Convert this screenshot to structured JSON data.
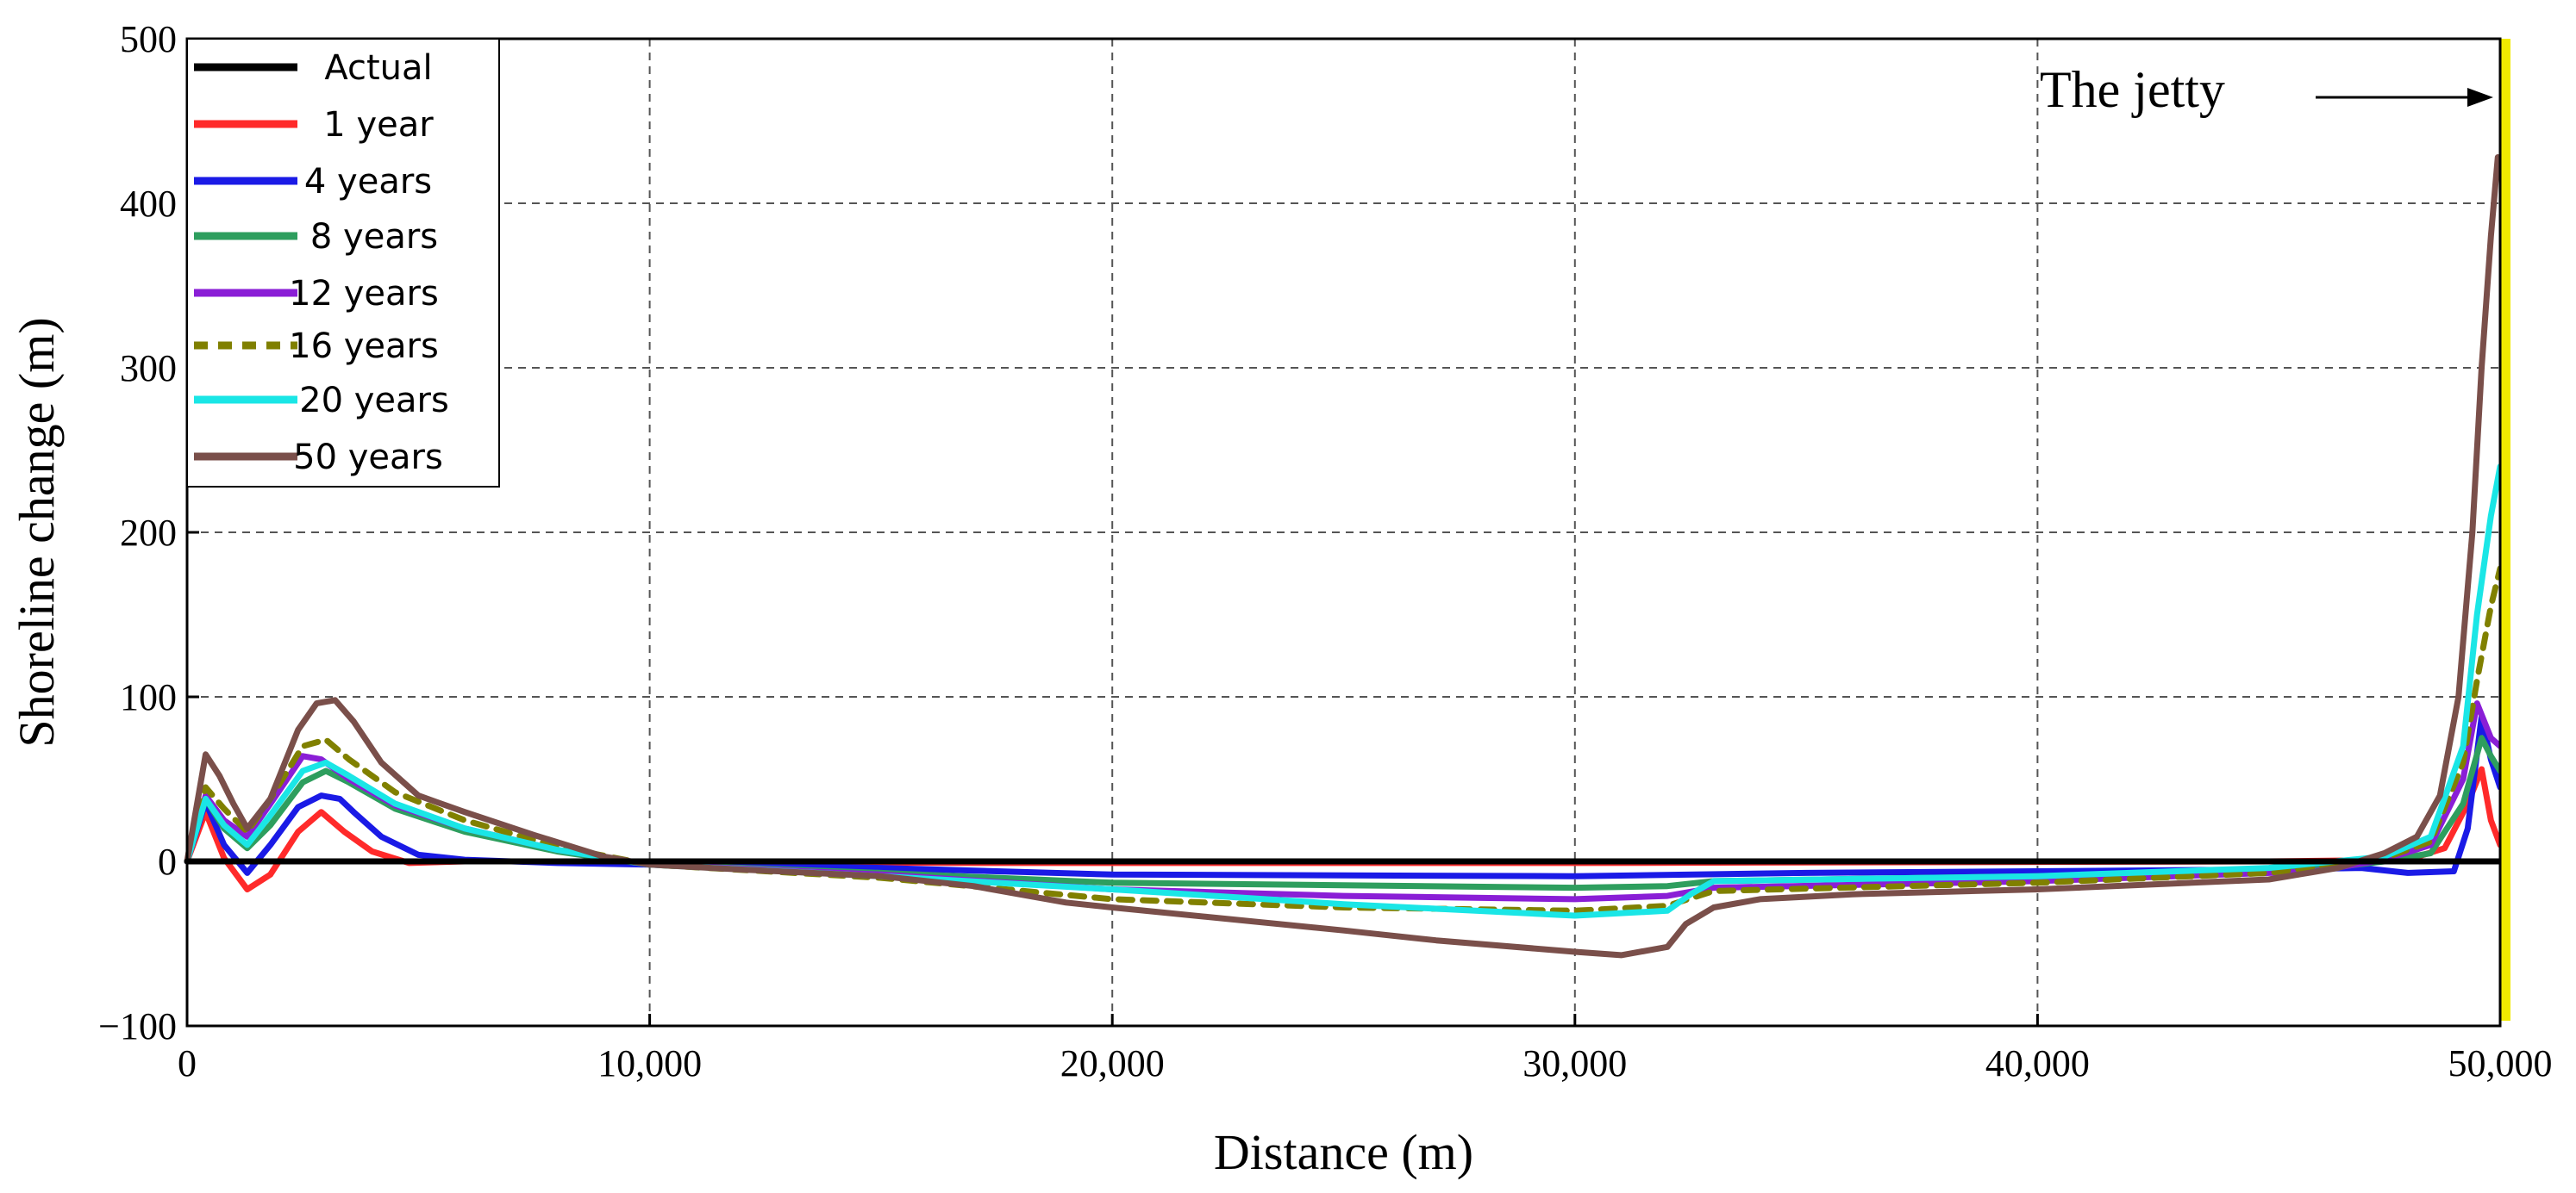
{
  "chart_data": {
    "type": "line",
    "title": "",
    "xlabel": "Distance  (m)",
    "ylabel": "Shoreline change (m)",
    "xlim": [
      0,
      50000
    ],
    "ylim": [
      -100,
      500
    ],
    "x_ticks": [
      0,
      10000,
      20000,
      30000,
      40000,
      50000
    ],
    "x_tick_labels": [
      "0",
      "10,000",
      "20,000",
      "30,000",
      "40,000",
      "50,000"
    ],
    "y_ticks": [
      -100,
      0,
      100,
      200,
      300,
      400,
      500
    ],
    "y_tick_labels": [
      "−100",
      "0",
      "100",
      "200",
      "300",
      "400",
      "500"
    ],
    "grid": true,
    "legend_position": "top-left",
    "annotation": {
      "text": "The jetty",
      "x": 50000,
      "y": 465
    },
    "jetty_line": {
      "x": 50000,
      "color": "#f2ea00"
    },
    "series": [
      {
        "name": "Actual",
        "color": "#000000",
        "dash": "solid",
        "points": [
          [
            0,
            0
          ],
          [
            50000,
            0
          ]
        ]
      },
      {
        "name": "1 year",
        "color": "#ff2a2a",
        "dash": "solid",
        "points": [
          [
            0,
            0
          ],
          [
            400,
            30
          ],
          [
            800,
            2
          ],
          [
            1300,
            -17
          ],
          [
            1800,
            -8
          ],
          [
            2400,
            18
          ],
          [
            2900,
            30
          ],
          [
            3400,
            18
          ],
          [
            4000,
            6
          ],
          [
            4800,
            -1
          ],
          [
            6000,
            0
          ],
          [
            10000,
            0
          ],
          [
            17000,
            -1
          ],
          [
            30000,
            -1
          ],
          [
            45000,
            0
          ],
          [
            48000,
            1
          ],
          [
            48800,
            8
          ],
          [
            49300,
            35
          ],
          [
            49600,
            56
          ],
          [
            49800,
            25
          ],
          [
            50000,
            10
          ]
        ]
      },
      {
        "name": "4 years",
        "color": "#1a1ae6",
        "dash": "solid",
        "points": [
          [
            0,
            0
          ],
          [
            400,
            36
          ],
          [
            800,
            10
          ],
          [
            1300,
            -7
          ],
          [
            1800,
            10
          ],
          [
            2400,
            33
          ],
          [
            2900,
            40
          ],
          [
            3300,
            38
          ],
          [
            3600,
            30
          ],
          [
            4200,
            15
          ],
          [
            5000,
            4
          ],
          [
            6000,
            1
          ],
          [
            8000,
            -1
          ],
          [
            10000,
            -2
          ],
          [
            15000,
            -4
          ],
          [
            20000,
            -8
          ],
          [
            30000,
            -9
          ],
          [
            35000,
            -7
          ],
          [
            45000,
            -5
          ],
          [
            47000,
            -4
          ],
          [
            48000,
            -7
          ],
          [
            49000,
            -6
          ],
          [
            49300,
            20
          ],
          [
            49600,
            88
          ],
          [
            49800,
            62
          ],
          [
            50000,
            45
          ]
        ]
      },
      {
        "name": "8 years",
        "color": "#2e9e5e",
        "dash": "solid",
        "points": [
          [
            0,
            0
          ],
          [
            400,
            38
          ],
          [
            800,
            20
          ],
          [
            1300,
            8
          ],
          [
            1800,
            22
          ],
          [
            2500,
            48
          ],
          [
            3000,
            55
          ],
          [
            3500,
            48
          ],
          [
            4500,
            32
          ],
          [
            6000,
            18
          ],
          [
            8000,
            6
          ],
          [
            10000,
            -2
          ],
          [
            15000,
            -7
          ],
          [
            20000,
            -13
          ],
          [
            30000,
            -16
          ],
          [
            32000,
            -15
          ],
          [
            33000,
            -12
          ],
          [
            40000,
            -9
          ],
          [
            46000,
            -5
          ],
          [
            47500,
            0
          ],
          [
            48500,
            5
          ],
          [
            49200,
            35
          ],
          [
            49600,
            75
          ],
          [
            49800,
            64
          ],
          [
            50000,
            55
          ]
        ]
      },
      {
        "name": "12 years",
        "color": "#8a1ed6",
        "dash": "solid",
        "points": [
          [
            0,
            0
          ],
          [
            400,
            40
          ],
          [
            800,
            25
          ],
          [
            1300,
            15
          ],
          [
            1800,
            35
          ],
          [
            2500,
            64
          ],
          [
            2900,
            62
          ],
          [
            3500,
            50
          ],
          [
            4500,
            34
          ],
          [
            6000,
            20
          ],
          [
            8000,
            7
          ],
          [
            10000,
            -2
          ],
          [
            15000,
            -8
          ],
          [
            20000,
            -17
          ],
          [
            25000,
            -21
          ],
          [
            30000,
            -23
          ],
          [
            32000,
            -21
          ],
          [
            33000,
            -16
          ],
          [
            40000,
            -12
          ],
          [
            46000,
            -6
          ],
          [
            47500,
            1
          ],
          [
            48500,
            10
          ],
          [
            49200,
            50
          ],
          [
            49500,
            96
          ],
          [
            49800,
            75
          ],
          [
            50000,
            70
          ]
        ]
      },
      {
        "name": "16 years",
        "color": "#808000",
        "dash": "dash",
        "points": [
          [
            0,
            0
          ],
          [
            400,
            45
          ],
          [
            800,
            32
          ],
          [
            1300,
            18
          ],
          [
            1800,
            38
          ],
          [
            2500,
            70
          ],
          [
            3000,
            74
          ],
          [
            3500,
            62
          ],
          [
            4500,
            42
          ],
          [
            6000,
            25
          ],
          [
            8000,
            9
          ],
          [
            10000,
            -2
          ],
          [
            15000,
            -10
          ],
          [
            20000,
            -23
          ],
          [
            25000,
            -28
          ],
          [
            30000,
            -30
          ],
          [
            32000,
            -27
          ],
          [
            33000,
            -18
          ],
          [
            40000,
            -13
          ],
          [
            45000,
            -7
          ],
          [
            47500,
            2
          ],
          [
            48500,
            12
          ],
          [
            49200,
            60
          ],
          [
            49500,
            110
          ],
          [
            49800,
            155
          ],
          [
            50000,
            178
          ]
        ]
      },
      {
        "name": "20 years",
        "color": "#1ae6e6",
        "dash": "solid",
        "points": [
          [
            0,
            0
          ],
          [
            400,
            38
          ],
          [
            800,
            22
          ],
          [
            1300,
            10
          ],
          [
            1800,
            28
          ],
          [
            2500,
            55
          ],
          [
            3000,
            60
          ],
          [
            3500,
            52
          ],
          [
            4500,
            35
          ],
          [
            6000,
            20
          ],
          [
            8000,
            7
          ],
          [
            10000,
            -2
          ],
          [
            15000,
            -9
          ],
          [
            20000,
            -17
          ],
          [
            25000,
            -26
          ],
          [
            30000,
            -33
          ],
          [
            32000,
            -30
          ],
          [
            32500,
            -20
          ],
          [
            33000,
            -12
          ],
          [
            40000,
            -9
          ],
          [
            45000,
            -4
          ],
          [
            47500,
            3
          ],
          [
            48500,
            15
          ],
          [
            49200,
            70
          ],
          [
            49500,
            150
          ],
          [
            49800,
            210
          ],
          [
            50000,
            240
          ]
        ]
      },
      {
        "name": "50 years",
        "color": "#7a4f4a",
        "dash": "solid",
        "points": [
          [
            0,
            0
          ],
          [
            400,
            65
          ],
          [
            700,
            52
          ],
          [
            1000,
            35
          ],
          [
            1300,
            20
          ],
          [
            1800,
            38
          ],
          [
            2400,
            80
          ],
          [
            2800,
            96
          ],
          [
            3200,
            98
          ],
          [
            3600,
            85
          ],
          [
            4200,
            60
          ],
          [
            5000,
            40
          ],
          [
            6000,
            30
          ],
          [
            7500,
            16
          ],
          [
            9000,
            3
          ],
          [
            10000,
            -2
          ],
          [
            12000,
            -5
          ],
          [
            15000,
            -9
          ],
          [
            17000,
            -15
          ],
          [
            19000,
            -25
          ],
          [
            20000,
            -28
          ],
          [
            25000,
            -42
          ],
          [
            27000,
            -48
          ],
          [
            30000,
            -55
          ],
          [
            31000,
            -57
          ],
          [
            32000,
            -52
          ],
          [
            32400,
            -38
          ],
          [
            33000,
            -28
          ],
          [
            34000,
            -23
          ],
          [
            36000,
            -20
          ],
          [
            40000,
            -17
          ],
          [
            45000,
            -11
          ],
          [
            46500,
            -4
          ],
          [
            47500,
            5
          ],
          [
            48200,
            15
          ],
          [
            48700,
            40
          ],
          [
            49100,
            100
          ],
          [
            49400,
            200
          ],
          [
            49600,
            300
          ],
          [
            49800,
            380
          ],
          [
            49950,
            428
          ]
        ]
      }
    ]
  }
}
